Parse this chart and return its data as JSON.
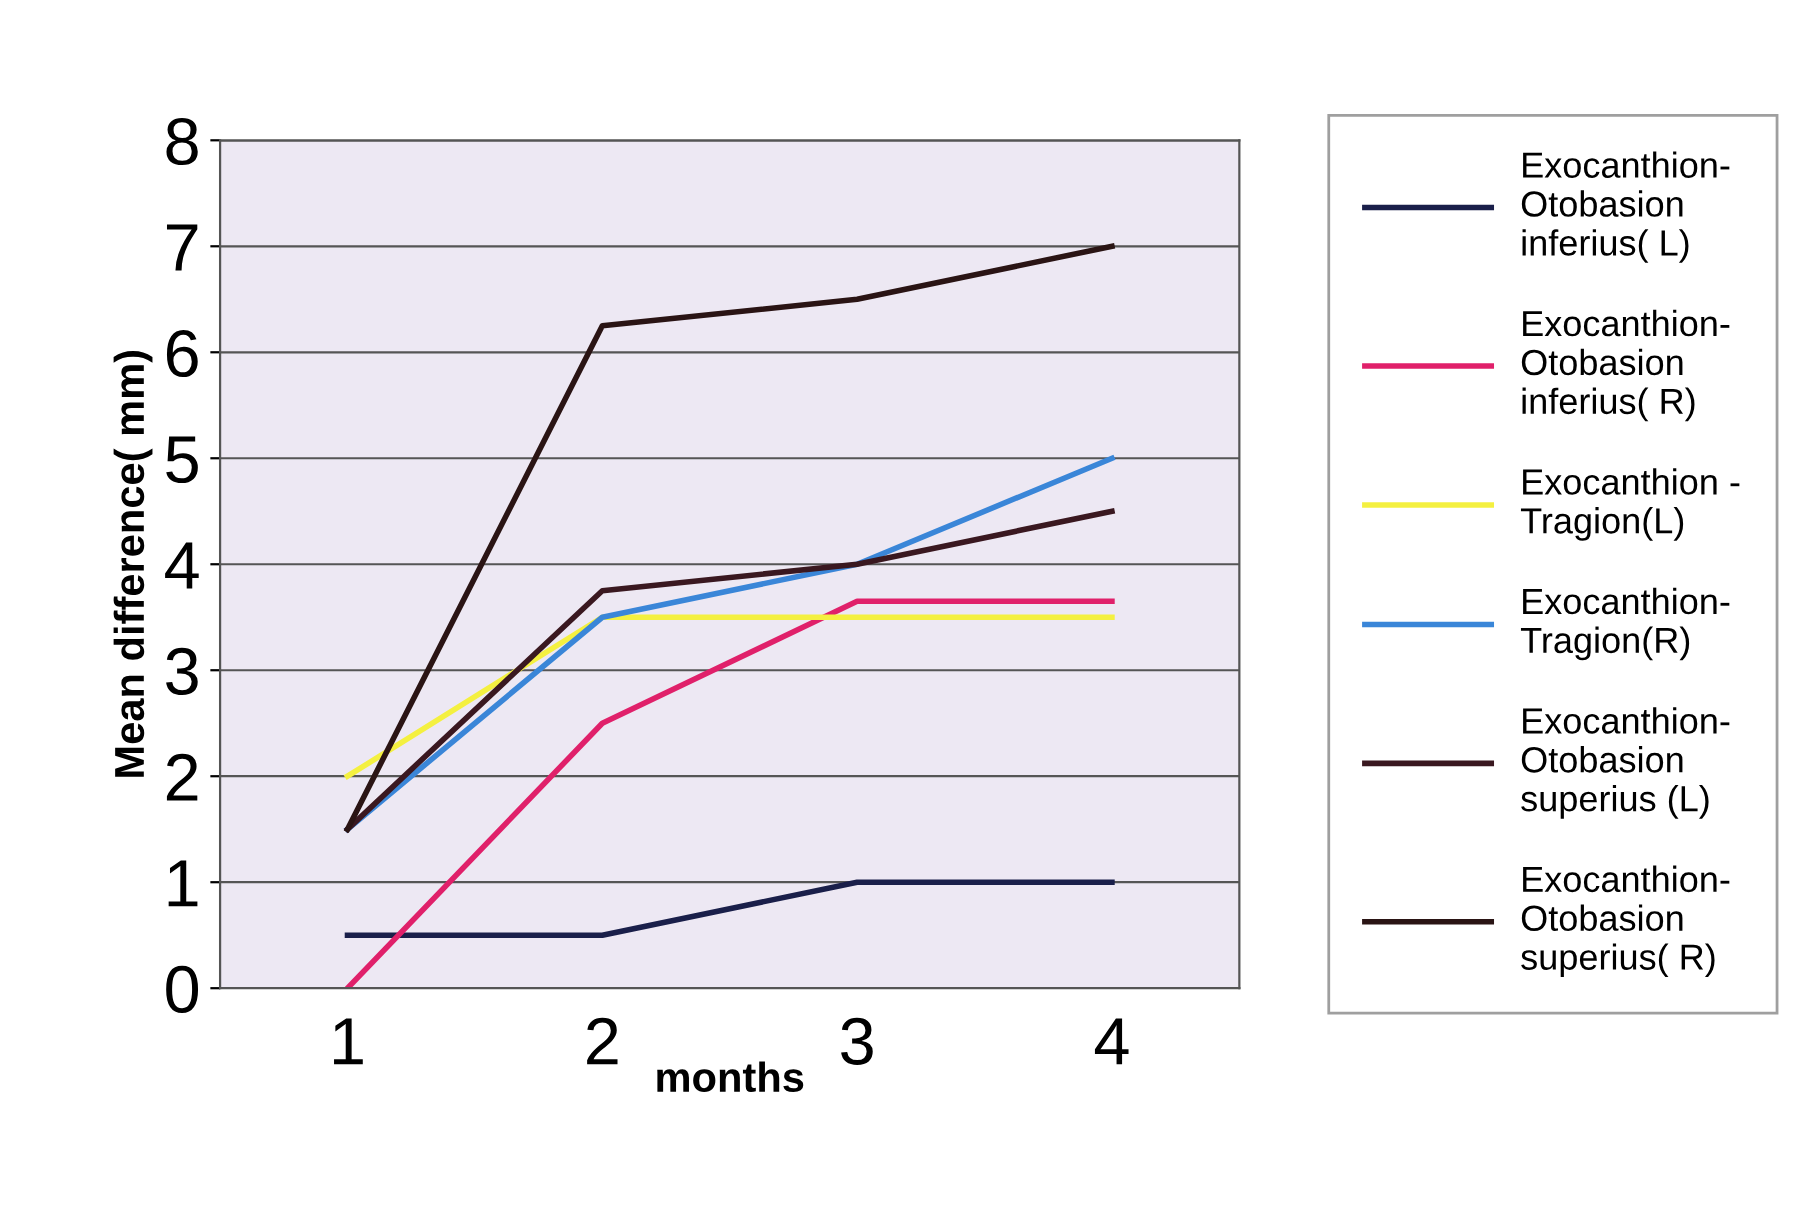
{
  "chart_data": {
    "type": "line",
    "xlabel": "months",
    "ylabel": "Mean difference( mm)",
    "categories": [
      "1",
      "2",
      "3",
      "4"
    ],
    "series": [
      {
        "name": "Exocanthion-\nOtobasion\ninferius( L)",
        "color": "#1a1f4a",
        "values": [
          0.5,
          0.5,
          1,
          1
        ]
      },
      {
        "name": "Exocanthion-\nOtobasion\ninferius( R)",
        "color": "#e0206a",
        "values": [
          0,
          2.5,
          3.65,
          3.65
        ]
      },
      {
        "name": "Exocanthion -\nTragion(L)",
        "color": "#f4f040",
        "values": [
          2,
          3.5,
          3.5,
          3.5
        ]
      },
      {
        "name": "Exocanthion-\nTragion(R)",
        "color": "#3a86d8",
        "values": [
          1.5,
          3.5,
          4,
          5
        ]
      },
      {
        "name": "Exocanthion-\nOtobasion\nsuperius (L)",
        "color": "#3a1820",
        "values": [
          1.5,
          3.75,
          4,
          4.5
        ]
      },
      {
        "name": "Exocanthion-\nOtobasion\nsuperius( R)",
        "color": "#2a1414",
        "values": [
          1.5,
          6.25,
          6.5,
          7
        ]
      }
    ],
    "ylim": [
      0,
      8
    ],
    "yticks": [
      0,
      1,
      2,
      3,
      4,
      5,
      6,
      7,
      8
    ],
    "grid": "y",
    "legend": "right",
    "marker": "none",
    "line_style": "solid"
  }
}
